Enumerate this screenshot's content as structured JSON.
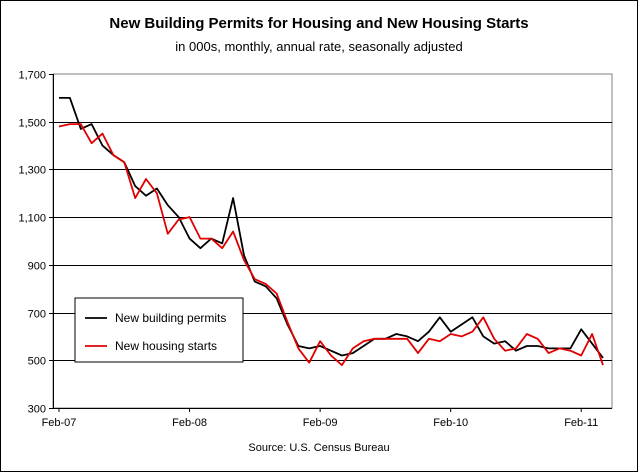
{
  "chart_data": {
    "type": "line",
    "title": "New Building Permits for Housing and New Housing Starts",
    "subtitle": "in 000s, monthly, annual rate, seasonally adjusted",
    "source": "Source: U.S. Census Bureau",
    "ylim": [
      300,
      1700
    ],
    "y_ticks": [
      "300",
      "500",
      "700",
      "900",
      "1,100",
      "1,300",
      "1,500",
      "1,700"
    ],
    "x_ticks": [
      "Feb-07",
      "Feb-08",
      "Feb-09",
      "Feb-10",
      "Feb-11"
    ],
    "grid": "horizontal",
    "legend_position": "middle-left",
    "series": [
      {
        "name": "New building permits",
        "color": "#000000",
        "values": [
          1600,
          1600,
          1470,
          1490,
          1400,
          1360,
          1330,
          1230,
          1190,
          1220,
          1150,
          1100,
          1010,
          970,
          1010,
          990,
          1180,
          940,
          830,
          810,
          760,
          650,
          560,
          550,
          560,
          540,
          520,
          530,
          560,
          590,
          590,
          610,
          600,
          580,
          620,
          680,
          620,
          650,
          680,
          600,
          570,
          580,
          540,
          560,
          560,
          550,
          550,
          550,
          630,
          570,
          510
        ]
      },
      {
        "name": "New housing starts",
        "color": "#e00000",
        "values": [
          1480,
          1490,
          1490,
          1410,
          1450,
          1360,
          1330,
          1180,
          1260,
          1200,
          1030,
          1090,
          1100,
          1010,
          1010,
          970,
          1040,
          920,
          840,
          820,
          780,
          660,
          550,
          490,
          580,
          520,
          480,
          550,
          580,
          590,
          590,
          590,
          590,
          530,
          590,
          580,
          610,
          600,
          620,
          680,
          590,
          540,
          550,
          610,
          590,
          530,
          550,
          540,
          520,
          610,
          480
        ]
      }
    ]
  }
}
